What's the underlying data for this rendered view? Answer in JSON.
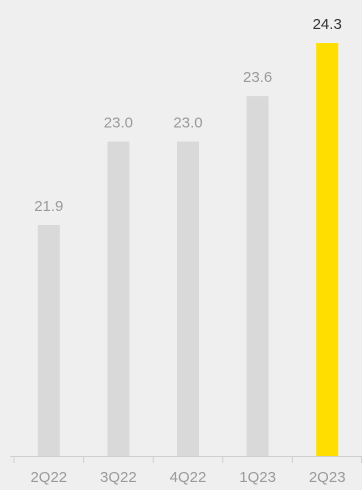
{
  "chart_data": {
    "type": "bar",
    "categories": [
      "2Q22",
      "3Q22",
      "4Q22",
      "1Q23",
      "2Q23"
    ],
    "values": [
      21.9,
      23.0,
      23.0,
      23.6,
      24.3
    ],
    "value_labels": [
      "21.9",
      "23.0",
      "23.0",
      "23.6",
      "24.3"
    ],
    "title": "",
    "xlabel": "",
    "ylabel": "",
    "grid": false,
    "legend": "none",
    "highlight_index": 4,
    "colors": {
      "bar": "#d9d9d9",
      "highlight_bar": "#ffde00",
      "label": "#9a9a9a",
      "highlight_label": "#333333",
      "axis": "#d0d0d0",
      "background": "#efefef"
    }
  }
}
